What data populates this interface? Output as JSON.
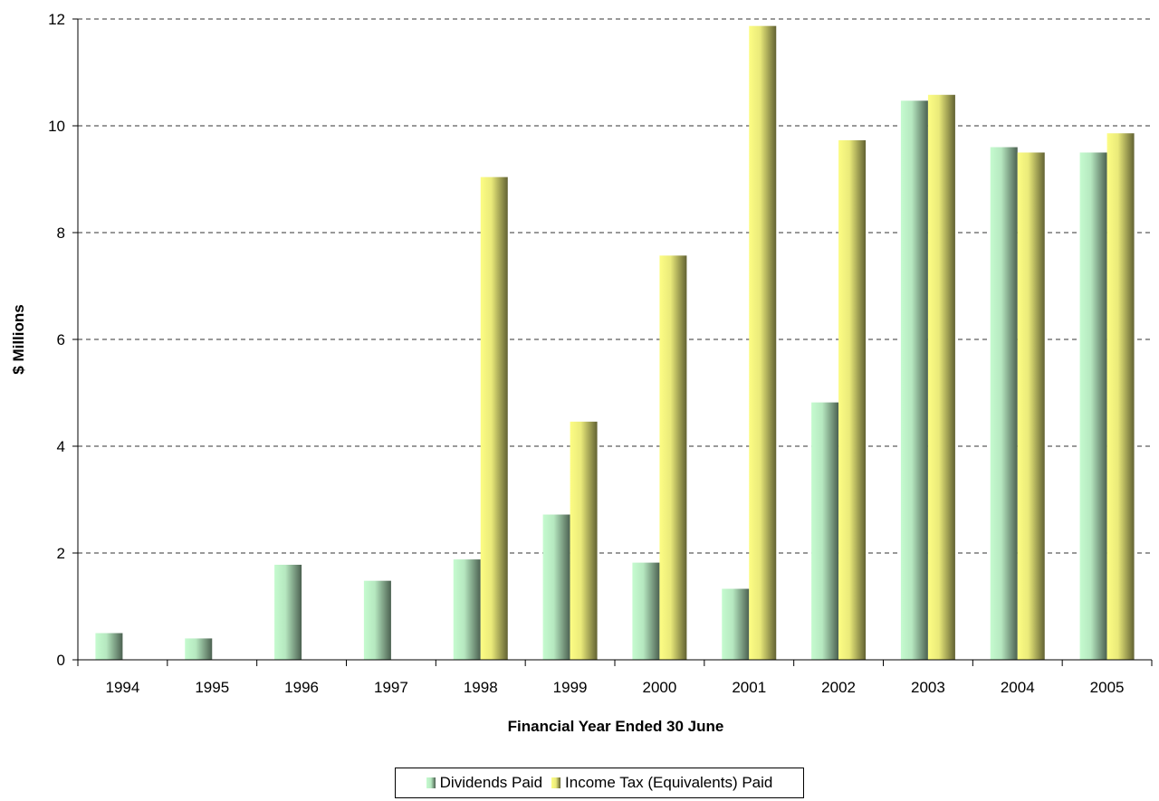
{
  "chart_data": {
    "type": "bar",
    "title": "",
    "xlabel": "Financial Year Ended 30 June",
    "ylabel": "$ Millions",
    "ylim": [
      0,
      12
    ],
    "yticks": [
      0,
      2,
      4,
      6,
      8,
      10,
      12
    ],
    "grid": true,
    "legend_position": "bottom",
    "categories": [
      "1994",
      "1995",
      "1996",
      "1997",
      "1998",
      "1999",
      "2000",
      "2001",
      "2002",
      "2003",
      "2004",
      "2005"
    ],
    "series": [
      {
        "name": "Dividends Paid",
        "color": "#b6e8c0",
        "values": [
          0.5,
          0.4,
          1.78,
          1.48,
          1.88,
          2.72,
          1.82,
          1.33,
          4.82,
          10.47,
          9.6,
          9.5
        ]
      },
      {
        "name": "Income Tax (Equivalents) Paid",
        "color": "#eaea7a",
        "values": [
          0,
          0,
          0,
          0,
          9.04,
          4.46,
          7.57,
          11.87,
          9.73,
          10.58,
          9.5,
          9.86
        ]
      }
    ]
  }
}
